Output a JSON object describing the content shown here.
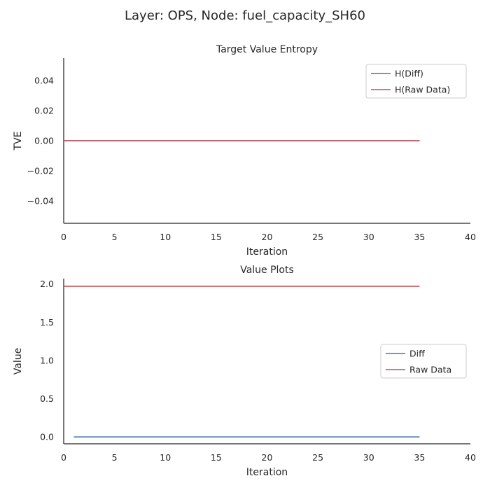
{
  "suptitle": "Layer: OPS, Node: fuel_capacity_SH60",
  "chart_data": [
    {
      "type": "line",
      "title": "Target Value Entropy",
      "xlabel": "Iteration",
      "ylabel": "TVE",
      "xlim": [
        0,
        40
      ],
      "ylim": [
        -0.055,
        0.055
      ],
      "xticks": [
        0,
        5,
        10,
        15,
        20,
        25,
        30,
        35,
        40
      ],
      "xtick_labels": [
        "0",
        "5",
        "10",
        "15",
        "20",
        "25",
        "30",
        "35",
        "40"
      ],
      "yticks": [
        -0.04,
        -0.02,
        0.0,
        0.02,
        0.04
      ],
      "ytick_labels": [
        "−0.04",
        "−0.02",
        "0.00",
        "0.02",
        "0.04"
      ],
      "legend_position": "upper-right",
      "series": [
        {
          "name": "H(Diff)",
          "color": "#4c72b0",
          "x": [
            0,
            35
          ],
          "y": [
            0.0,
            0.0
          ]
        },
        {
          "name": "H(Raw Data)",
          "color": "#c44e52",
          "x": [
            0,
            35
          ],
          "y": [
            0.0,
            0.0
          ]
        }
      ]
    },
    {
      "type": "line",
      "title": "Value Plots",
      "xlabel": "Iteration",
      "ylabel": "Value",
      "xlim": [
        0,
        40
      ],
      "ylim": [
        -0.09,
        2.07
      ],
      "xticks": [
        0,
        5,
        10,
        15,
        20,
        25,
        30,
        35,
        40
      ],
      "xtick_labels": [
        "0",
        "5",
        "10",
        "15",
        "20",
        "25",
        "30",
        "35",
        "40"
      ],
      "yticks": [
        0.0,
        0.5,
        1.0,
        1.5,
        2.0
      ],
      "ytick_labels": [
        "0.0",
        "0.5",
        "1.0",
        "1.5",
        "2.0"
      ],
      "legend_position": "center-right",
      "series": [
        {
          "name": "Diff",
          "color": "#4c72b0",
          "x": [
            1,
            35
          ],
          "y": [
            0.0,
            0.0
          ]
        },
        {
          "name": "Raw Data",
          "color": "#c44e52",
          "x": [
            0,
            35
          ],
          "y": [
            1.97,
            1.97
          ]
        }
      ]
    }
  ]
}
